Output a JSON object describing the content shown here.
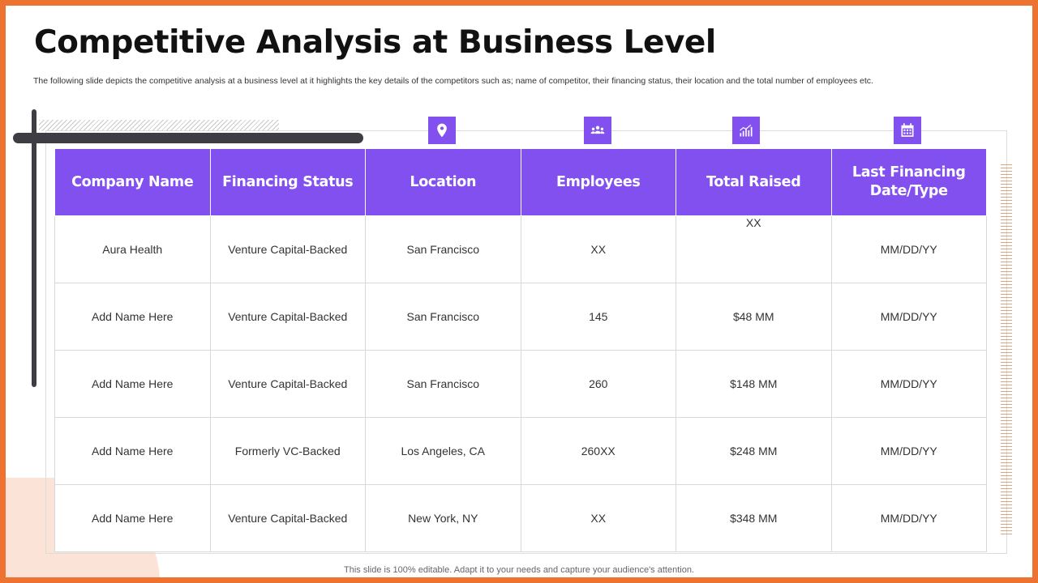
{
  "title": "Competitive Analysis at Business Level",
  "description": "The following slide depicts the competitive analysis at a business level at it highlights the key details of the competitors such as; name of competitor, their financing status, their location and the total number of employees etc.",
  "icons": [
    "location-pin-icon",
    "people-group-icon",
    "bar-chart-growth-icon",
    "calendar-icon"
  ],
  "colors": {
    "accent": "#8350f0",
    "frame": "#ee7230",
    "dark_bar": "#3e3d44",
    "blob": "#fbe3d7"
  },
  "table": {
    "headers": [
      "Company Name",
      "Financing Status",
      "Location",
      "Employees",
      "Total Raised",
      "Last Financing Date/Type"
    ],
    "rows": [
      [
        "Aura Health",
        "Venture Capital-Backed",
        "San Francisco",
        "XX",
        "XX",
        "MM/DD/YY"
      ],
      [
        "Add Name Here",
        "Venture Capital-Backed",
        "San Francisco",
        "145",
        "$48 MM",
        "MM/DD/YY"
      ],
      [
        "Add Name Here",
        "Venture Capital-Backed",
        "San Francisco",
        "260",
        "$148 MM",
        "MM/DD/YY"
      ],
      [
        "Add Name Here",
        "Formerly VC-Backed",
        "Los Angeles, CA",
        "260XX",
        "$248 MM",
        "MM/DD/YY"
      ],
      [
        "Add Name Here",
        "Venture Capital-Backed",
        "New York, NY",
        "XX",
        "$348 MM",
        "MM/DD/YY"
      ]
    ]
  },
  "footer": "This slide is 100% editable. Adapt it to your needs and capture your audience's attention."
}
